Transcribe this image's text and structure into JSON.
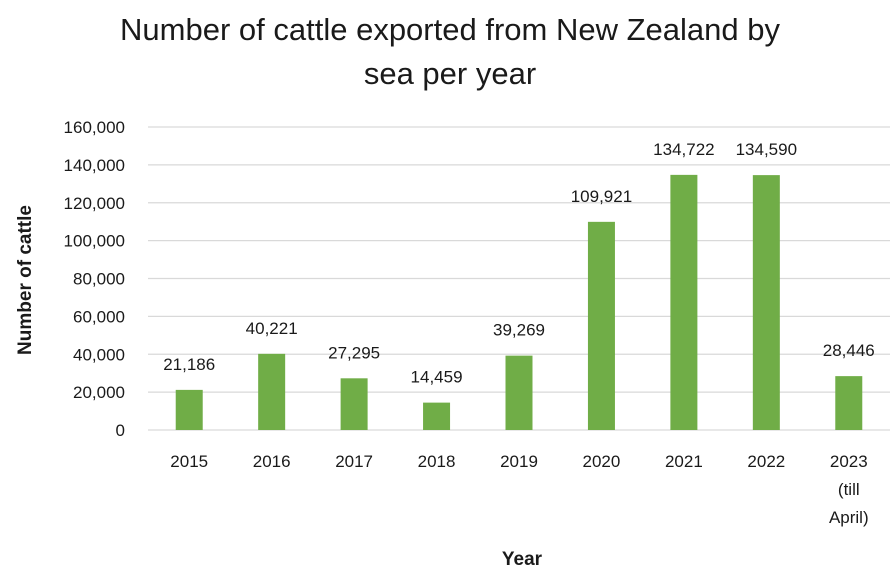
{
  "chart_data": {
    "type": "bar",
    "title_lines": [
      "Number of cattle exported from New Zealand by",
      "sea per year"
    ],
    "xlabel": "Year",
    "ylabel": "Number of cattle",
    "categories": [
      [
        "2015"
      ],
      [
        "2016"
      ],
      [
        "2017"
      ],
      [
        "2018"
      ],
      [
        "2019"
      ],
      [
        "2020"
      ],
      [
        "2021"
      ],
      [
        "2022"
      ],
      [
        "2023",
        "(till",
        "April)"
      ]
    ],
    "values": [
      21186,
      40221,
      27295,
      14459,
      39269,
      109921,
      134722,
      134590,
      28446
    ],
    "value_labels": [
      "21,186",
      "40,221",
      "27,295",
      "14,459",
      "39,269",
      "109,921",
      "134,722",
      "134,590",
      "28,446"
    ],
    "y_ticks": [
      0,
      20000,
      40000,
      60000,
      80000,
      100000,
      120000,
      140000,
      160000
    ],
    "y_tick_labels": [
      "0",
      "20,000",
      "40,000",
      "60,000",
      "80,000",
      "100,000",
      "120,000",
      "140,000",
      "160,000"
    ],
    "ylim": [
      0,
      160000
    ],
    "grid": true,
    "legend": "none",
    "bar_color": "#70ad47",
    "grid_color": "#d9d9d9"
  }
}
